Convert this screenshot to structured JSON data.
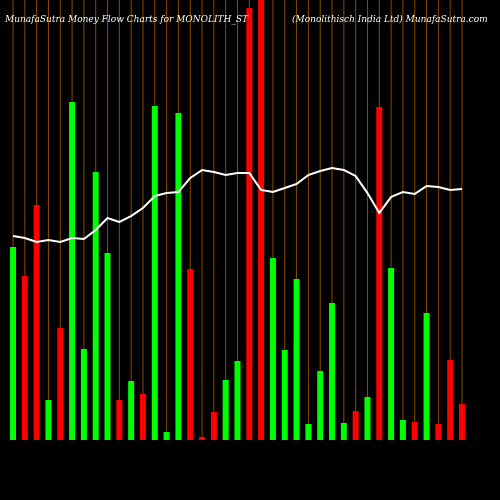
{
  "chart_data": {
    "type": "bar",
    "title": "MunafaSutra  Money Flow  Charts for MONOLITH_ST",
    "subtitle": "(Monolithisch India  Ltd) MunafaSutra.com",
    "categories": [
      null,
      null,
      null,
      null,
      null,
      null,
      null,
      null,
      null,
      null,
      null,
      null,
      null,
      null,
      null,
      null,
      null,
      null,
      null,
      null,
      null,
      null,
      null,
      null,
      null,
      null,
      null,
      null,
      null,
      null,
      null,
      null,
      null,
      null,
      null,
      null,
      null,
      null,
      null
    ],
    "series": [
      {
        "type": "bar",
        "colors": [
          "#00ff00",
          "#ff0000",
          "#ff0000",
          "#00ff00",
          "#ff0000",
          "#00ff00",
          "#00ff00",
          "#00ff00",
          "#00ff00",
          "#ff0000",
          "#00ff00",
          "#ff0000",
          "#00ff00",
          "#00ff00",
          "#00ff00",
          "#ff0000",
          "#ff0000",
          "#ff0000",
          "#00ff00",
          "#00ff00",
          "#ff0000",
          "#ff0000",
          "#00ff00",
          "#00ff00",
          "#00ff00",
          "#00ff00",
          "#00ff00",
          "#00ff00",
          "#00ff00",
          "#ff0000",
          "#00ff00",
          "#ff0000",
          "#00ff00",
          "#00ff00",
          "#ff0000",
          "#00ff00",
          "#ff0000",
          "#ff0000",
          "#ff0000"
        ],
        "values": [
          193,
          164,
          235,
          40,
          112,
          338,
          91,
          268,
          187,
          40,
          59,
          46,
          334,
          8,
          327,
          171,
          3,
          28,
          60,
          79,
          432,
          440,
          182,
          90,
          161,
          16,
          69,
          137,
          17,
          29,
          43,
          333,
          172,
          20,
          18,
          127,
          16,
          80,
          36
        ]
      },
      {
        "type": "line",
        "color": "#ffffff",
        "values": [
          204,
          202,
          198,
          200,
          198,
          202,
          201,
          210,
          222,
          218,
          224,
          232,
          244,
          247,
          248,
          262,
          270,
          268,
          265,
          267,
          267,
          250,
          248,
          252,
          256,
          265,
          269,
          272,
          270,
          264,
          247,
          227,
          243,
          248,
          246,
          254,
          253,
          250,
          251
        ]
      }
    ],
    "ylim": [
      0,
      440
    ]
  }
}
